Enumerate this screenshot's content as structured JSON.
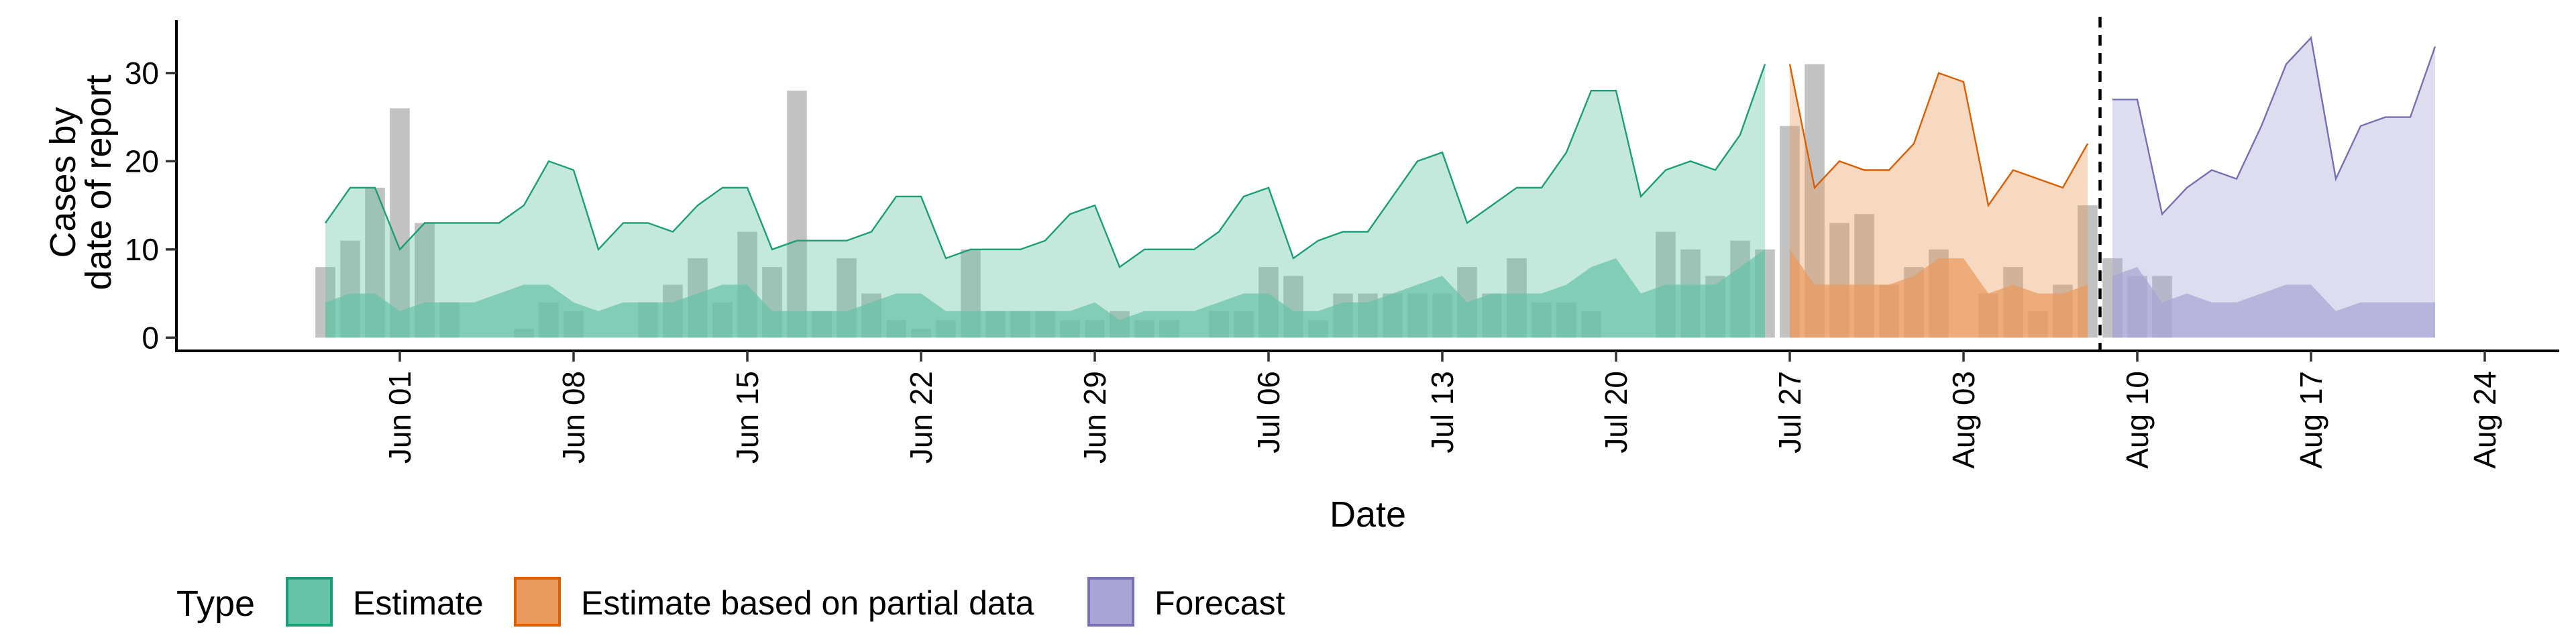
{
  "chart_data": {
    "type": "area",
    "xlabel": "Date",
    "ylabel_lines": [
      "Cases by",
      "date of report"
    ],
    "ylim": [
      -1.5,
      36
    ],
    "yticks": [
      0,
      10,
      20,
      30
    ],
    "xlim": [
      "2020-05-23",
      "2020-08-27"
    ],
    "xticks": [
      {
        "date": "2020-06-01",
        "label": "Jun 01"
      },
      {
        "date": "2020-06-08",
        "label": "Jun 08"
      },
      {
        "date": "2020-06-15",
        "label": "Jun 15"
      },
      {
        "date": "2020-06-22",
        "label": "Jun 22"
      },
      {
        "date": "2020-06-29",
        "label": "Jun 29"
      },
      {
        "date": "2020-07-06",
        "label": "Jul 06"
      },
      {
        "date": "2020-07-13",
        "label": "Jul 13"
      },
      {
        "date": "2020-07-20",
        "label": "Jul 20"
      },
      {
        "date": "2020-07-27",
        "label": "Jul 27"
      },
      {
        "date": "2020-08-03",
        "label": "Aug 03"
      },
      {
        "date": "2020-08-10",
        "label": "Aug 10"
      },
      {
        "date": "2020-08-17",
        "label": "Aug 17"
      },
      {
        "date": "2020-08-24",
        "label": "Aug 24"
      }
    ],
    "forecast_date": "2020-08-08",
    "legend": {
      "title": "Type",
      "position": "bottom",
      "entries": [
        {
          "label": "Estimate",
          "fill": "#66c2a5",
          "stroke": "#1b9e77"
        },
        {
          "label": "Estimate based on partial data",
          "fill": "#e99a5e",
          "stroke": "#d95f02"
        },
        {
          "label": "Forecast",
          "fill": "#a9a5d5",
          "stroke": "#7570b3"
        }
      ]
    },
    "observed": {
      "color": "#bdbdbd",
      "start": "2020-05-29",
      "values": [
        8,
        11,
        17,
        26,
        13,
        4,
        0,
        0,
        1,
        4,
        3,
        0,
        0,
        4,
        6,
        9,
        4,
        12,
        8,
        28,
        3,
        9,
        5,
        2,
        1,
        2,
        10,
        3,
        3,
        3,
        2,
        2,
        3,
        2,
        2,
        0,
        3,
        3,
        8,
        7,
        2,
        5,
        5,
        5,
        5,
        5,
        8,
        5,
        9,
        4,
        4,
        3,
        0,
        0,
        12,
        10,
        7,
        11,
        10,
        24,
        31,
        13,
        14,
        6,
        8,
        10,
        0,
        5,
        8,
        3,
        6,
        15,
        9,
        7,
        7
      ]
    },
    "series": [
      {
        "name": "Estimate",
        "start": "2020-05-29",
        "fill": "#66c2a5",
        "stroke": "#1b9e77",
        "outer_upper": [
          13,
          17,
          17,
          10,
          13,
          13,
          13,
          13,
          15,
          20,
          19,
          10,
          13,
          13,
          12,
          15,
          17,
          17,
          10,
          11,
          11,
          11,
          12,
          16,
          16,
          9,
          10,
          10,
          10,
          11,
          14,
          15,
          8,
          10,
          10,
          10,
          12,
          16,
          17,
          9,
          11,
          12,
          12,
          16,
          20,
          21,
          13,
          15,
          17,
          17,
          21,
          28,
          28,
          16,
          19,
          20,
          19,
          23,
          31
        ],
        "outer_lower": [
          0,
          0,
          0,
          0,
          0,
          0,
          0,
          0,
          0,
          0,
          0,
          0,
          0,
          0,
          0,
          0,
          0,
          0,
          0,
          0,
          0,
          0,
          0,
          0,
          0,
          0,
          0,
          0,
          0,
          0,
          0,
          0,
          0,
          0,
          0,
          0,
          0,
          0,
          0,
          0,
          0,
          0,
          0,
          0,
          0,
          0,
          0,
          0,
          0,
          0,
          0,
          0,
          0,
          0,
          0,
          0,
          0,
          0,
          0
        ],
        "inner_upper": [
          4,
          5,
          5,
          3,
          4,
          4,
          4,
          5,
          6,
          6,
          4,
          3,
          4,
          4,
          4,
          5,
          6,
          6,
          3,
          3,
          3,
          3,
          4,
          5,
          5,
          3,
          3,
          3,
          3,
          3,
          3,
          4,
          2,
          3,
          3,
          3,
          4,
          5,
          5,
          3,
          3,
          4,
          4,
          5,
          6,
          7,
          4,
          5,
          5,
          5,
          6,
          8,
          9,
          5,
          6,
          6,
          6,
          8,
          10
        ],
        "inner_lower": [
          0,
          0,
          0,
          0,
          0,
          0,
          0,
          0,
          0,
          0,
          0,
          0,
          0,
          0,
          0,
          0,
          0,
          0,
          0,
          0,
          0,
          0,
          0,
          0,
          0,
          0,
          0,
          0,
          0,
          0,
          0,
          0,
          0,
          0,
          0,
          0,
          0,
          0,
          0,
          0,
          0,
          0,
          0,
          0,
          0,
          0,
          0,
          0,
          0,
          0,
          0,
          0,
          0,
          0,
          0,
          0,
          0,
          0,
          0
        ]
      },
      {
        "name": "Estimate based on partial data",
        "start": "2020-07-27",
        "fill": "#e99a5e",
        "stroke": "#d95f02",
        "outer_upper": [
          31,
          17,
          20,
          19,
          19,
          22,
          30,
          29,
          15,
          19,
          18,
          17,
          22
        ],
        "outer_lower": [
          0,
          0,
          0,
          0,
          0,
          0,
          0,
          0,
          0,
          0,
          0,
          0,
          0
        ],
        "inner_upper": [
          10,
          6,
          6,
          6,
          6,
          7,
          9,
          9,
          5,
          6,
          5,
          5,
          6
        ],
        "inner_lower": [
          0,
          0,
          0,
          0,
          0,
          0,
          0,
          0,
          0,
          0,
          0,
          0,
          0
        ]
      },
      {
        "name": "Forecast",
        "start": "2020-08-09",
        "fill": "#a9a5d5",
        "stroke": "#7570b3",
        "outer_upper": [
          27,
          27,
          14,
          17,
          19,
          18,
          24,
          31,
          34,
          18,
          24,
          25,
          25,
          33
        ],
        "outer_lower": [
          0,
          0,
          0,
          0,
          0,
          0,
          0,
          0,
          0,
          0,
          0,
          0,
          0,
          0
        ],
        "inner_upper": [
          7,
          8,
          4,
          5,
          4,
          4,
          5,
          6,
          6,
          3,
          4,
          4,
          4,
          4
        ],
        "inner_lower": [
          0,
          0,
          0,
          0,
          0,
          0,
          0,
          0,
          0,
          0,
          0,
          0,
          0,
          0
        ]
      }
    ]
  }
}
